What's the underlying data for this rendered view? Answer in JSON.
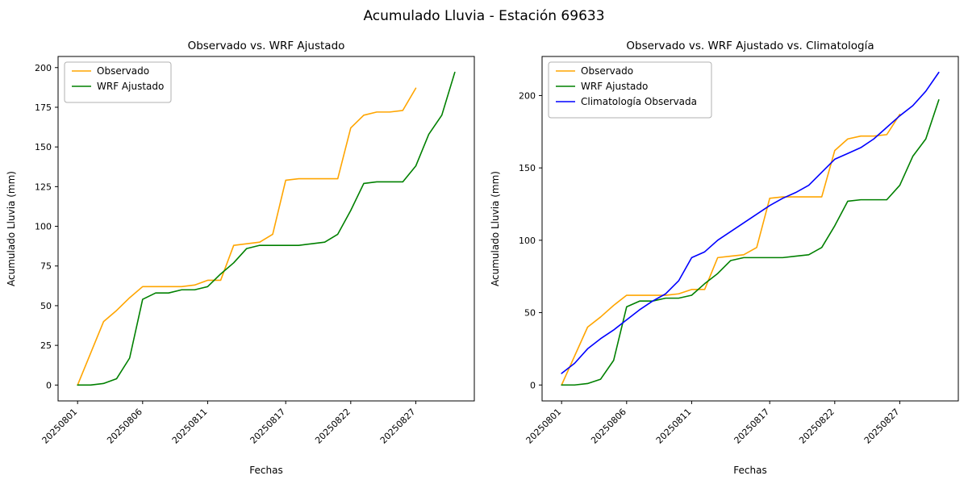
{
  "figure": {
    "title": "Acumulado Lluvia - Estación 69633",
    "background": "#ffffff"
  },
  "chart_data": [
    {
      "type": "line",
      "title": "Observado vs. WRF Ajustado",
      "xlabel": "Fechas",
      "ylabel": "Acumulado Lluvia (mm)",
      "grid": false,
      "legend_position": "upper-left",
      "xlim": [
        -0.5,
        31.5
      ],
      "ylim": [
        -10,
        207
      ],
      "x_tick_positions": [
        1,
        6,
        11,
        17,
        22,
        27
      ],
      "x_tick_labels": [
        "20250801",
        "20250806",
        "20250811",
        "20250817",
        "20250822",
        "20250827"
      ],
      "y_ticks": [
        0,
        25,
        50,
        75,
        100,
        125,
        150,
        175,
        200
      ],
      "series": [
        {
          "name": "Observado",
          "color": "#FFA500",
          "x": [
            1,
            2,
            3,
            4,
            5,
            6,
            7,
            8,
            9,
            10,
            11,
            12,
            13,
            14,
            15,
            16,
            17,
            18,
            19,
            20,
            21,
            22,
            23,
            24,
            25,
            26,
            27
          ],
          "values": [
            0,
            20,
            40,
            47,
            55,
            62,
            62,
            62,
            62,
            63,
            66,
            66,
            88,
            89,
            90,
            95,
            129,
            130,
            130,
            130,
            130,
            162,
            170,
            172,
            172,
            173,
            187
          ]
        },
        {
          "name": "WRF Ajustado",
          "color": "#008000",
          "x": [
            1,
            2,
            3,
            4,
            5,
            6,
            7,
            8,
            9,
            10,
            11,
            12,
            13,
            14,
            15,
            16,
            17,
            18,
            19,
            20,
            21,
            22,
            23,
            24,
            25,
            26,
            27,
            28,
            29,
            30
          ],
          "values": [
            0,
            0,
            1,
            4,
            17,
            54,
            58,
            58,
            60,
            60,
            62,
            70,
            77,
            86,
            88,
            88,
            88,
            88,
            89,
            90,
            95,
            110,
            127,
            128,
            128,
            128,
            138,
            158,
            170,
            197
          ]
        }
      ]
    },
    {
      "type": "line",
      "title": "Observado vs. WRF Ajustado vs. Climatología",
      "xlabel": "Fechas",
      "ylabel": "Acumulado Lluvia (mm)",
      "grid": false,
      "legend_position": "upper-left",
      "xlim": [
        -0.5,
        31.5
      ],
      "ylim": [
        -11,
        227
      ],
      "x_tick_positions": [
        1,
        6,
        11,
        17,
        22,
        27
      ],
      "x_tick_labels": [
        "20250801",
        "20250806",
        "20250811",
        "20250817",
        "20250822",
        "20250827"
      ],
      "y_ticks": [
        0,
        50,
        100,
        150,
        200
      ],
      "series": [
        {
          "name": "Observado",
          "color": "#FFA500",
          "x": [
            1,
            2,
            3,
            4,
            5,
            6,
            7,
            8,
            9,
            10,
            11,
            12,
            13,
            14,
            15,
            16,
            17,
            18,
            19,
            20,
            21,
            22,
            23,
            24,
            25,
            26,
            27
          ],
          "values": [
            0,
            20,
            40,
            47,
            55,
            62,
            62,
            62,
            62,
            63,
            66,
            66,
            88,
            89,
            90,
            95,
            129,
            130,
            130,
            130,
            130,
            162,
            170,
            172,
            172,
            173,
            187
          ]
        },
        {
          "name": "WRF Ajustado",
          "color": "#008000",
          "x": [
            1,
            2,
            3,
            4,
            5,
            6,
            7,
            8,
            9,
            10,
            11,
            12,
            13,
            14,
            15,
            16,
            17,
            18,
            19,
            20,
            21,
            22,
            23,
            24,
            25,
            26,
            27,
            28,
            29,
            30
          ],
          "values": [
            0,
            0,
            1,
            4,
            17,
            54,
            58,
            58,
            60,
            60,
            62,
            70,
            77,
            86,
            88,
            88,
            88,
            88,
            89,
            90,
            95,
            110,
            127,
            128,
            128,
            128,
            138,
            158,
            170,
            197
          ]
        },
        {
          "name": "Climatología Observada",
          "color": "#0000FF",
          "x": [
            1,
            2,
            3,
            4,
            5,
            6,
            7,
            8,
            9,
            10,
            11,
            12,
            13,
            14,
            15,
            16,
            17,
            18,
            19,
            20,
            21,
            22,
            23,
            24,
            25,
            26,
            27,
            28,
            29,
            30
          ],
          "values": [
            8,
            15,
            25,
            32,
            38,
            45,
            52,
            58,
            63,
            72,
            88,
            92,
            100,
            106,
            112,
            118,
            124,
            129,
            133,
            138,
            147,
            156,
            160,
            164,
            170,
            178,
            186,
            193,
            203,
            216
          ]
        }
      ]
    }
  ]
}
